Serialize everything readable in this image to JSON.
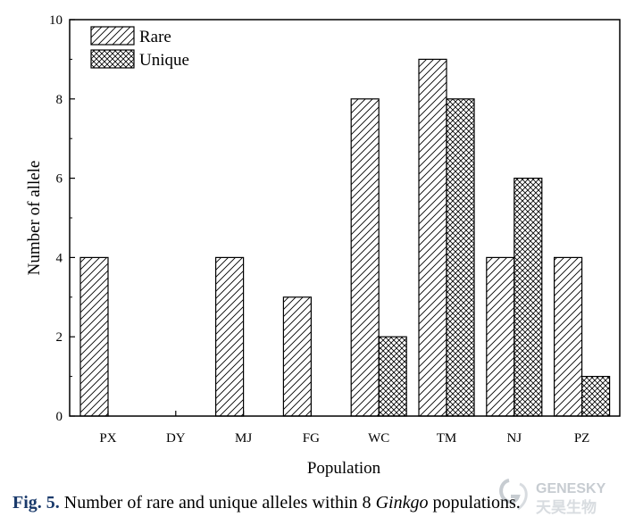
{
  "chart_data": {
    "type": "bar",
    "categories": [
      "PX",
      "DY",
      "MJ",
      "FG",
      "WC",
      "TM",
      "NJ",
      "PZ"
    ],
    "series": [
      {
        "name": "Rare",
        "values": [
          4,
          0,
          4,
          3,
          8,
          9,
          4,
          4
        ],
        "pattern": "diagonal-hatch"
      },
      {
        "name": "Unique",
        "values": [
          0,
          0,
          0,
          0,
          2,
          8,
          6,
          1
        ],
        "pattern": "crosshatch"
      }
    ],
    "xlabel": "Population",
    "ylabel": "Number of allele",
    "ylim": [
      0,
      10
    ],
    "yticks": [
      0,
      2,
      4,
      6,
      8,
      10
    ],
    "grid": false,
    "legend": "top-left"
  },
  "caption": {
    "fig_label": "Fig. 5.",
    "text_before": "Number of rare and unique alleles within 8",
    "italic_term": "Ginkgo",
    "text_after": "populations."
  },
  "watermark": {
    "text_en": "GENESKY",
    "text_cn": "天昊生物"
  }
}
